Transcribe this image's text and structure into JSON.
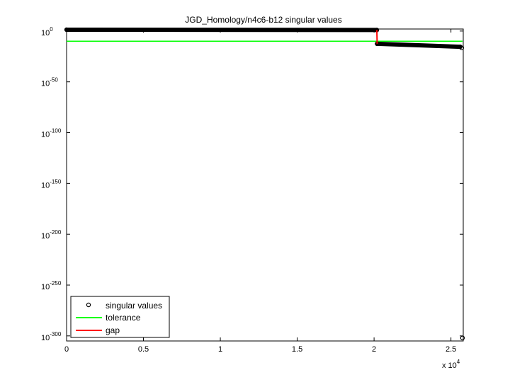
{
  "chart_data": {
    "type": "scatter",
    "title": "JGD_Homology/n4c6-b12 singular values",
    "xlabel": "",
    "ylabel": "",
    "y_scale": "log",
    "grid": false,
    "xlim": [
      0,
      25800
    ],
    "ylim_log10": [
      -305,
      2
    ],
    "x_ticks": [
      {
        "value": 0,
        "label": "0"
      },
      {
        "value": 5000,
        "label": "0.5"
      },
      {
        "value": 10000,
        "label": "1"
      },
      {
        "value": 15000,
        "label": "1.5"
      },
      {
        "value": 20000,
        "label": "2"
      },
      {
        "value": 25000,
        "label": "2.5"
      }
    ],
    "x_multiplier": {
      "base": "x 10",
      "exp": "4"
    },
    "y_ticks": [
      {
        "log10": 0,
        "base": "10",
        "exp": "0"
      },
      {
        "log10": -50,
        "base": "10",
        "exp": "-50"
      },
      {
        "log10": -100,
        "base": "10",
        "exp": "-100"
      },
      {
        "log10": -150,
        "base": "10",
        "exp": "-150"
      },
      {
        "log10": -200,
        "base": "10",
        "exp": "-200"
      },
      {
        "log10": -250,
        "base": "10",
        "exp": "-250"
      },
      {
        "log10": -300,
        "base": "10",
        "exp": "-300"
      }
    ],
    "series": [
      {
        "name": "singular values",
        "color": "#000000",
        "marker": "circle",
        "segments": [
          {
            "x_start": 1,
            "x_end": 20180,
            "log10_start": 1.3,
            "log10_end": 1.0
          },
          {
            "x_start": 20200,
            "x_end": 25600,
            "log10_start": -12.5,
            "log10_end": -15.5
          }
        ],
        "points": [
          {
            "x": 20200,
            "log10": -12.5
          },
          {
            "x": 25700,
            "log10": -16.5
          },
          {
            "x": 25750,
            "log10": -302
          }
        ]
      },
      {
        "name": "tolerance",
        "color": "#00ff00",
        "x": [
          0,
          25750
        ],
        "log10": [
          -10,
          -10
        ]
      },
      {
        "name": "gap",
        "color": "#ff0000",
        "x": [
          20180,
          20200
        ],
        "log10": [
          1.0,
          -12.5
        ]
      }
    ],
    "legend": {
      "placement": "bottom-left",
      "entries": [
        "singular values",
        "tolerance",
        "gap"
      ]
    }
  }
}
